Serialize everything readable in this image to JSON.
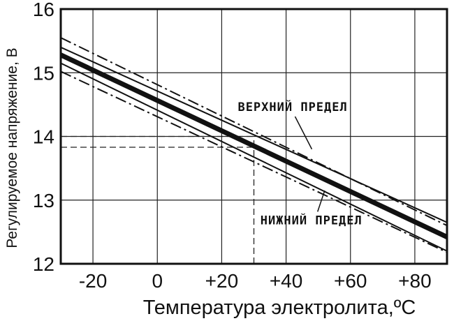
{
  "chart_data": {
    "type": "line",
    "xlabel": "Температура электролита,ºC",
    "ylabel": "Регулируемое напряжение, В",
    "xlim": [
      -30,
      90
    ],
    "ylim": [
      12,
      16
    ],
    "x_ticks": [
      -20,
      0,
      20,
      40,
      60,
      80
    ],
    "x_tick_labels": [
      "-20",
      "0",
      "+20",
      "+40",
      "+60",
      "+80"
    ],
    "y_ticks": [
      12,
      13,
      14,
      15,
      16
    ],
    "y_tick_labels": [
      "12",
      "13",
      "14",
      "15",
      "16"
    ],
    "grid": true,
    "series": [
      {
        "x": [
          -30,
          90
        ],
        "y": [
          15.55,
          12.6
        ],
        "style": "dash-dot"
      },
      {
        "x": [
          -30,
          90
        ],
        "y": [
          15.4,
          12.65
        ],
        "style": "solid-thin"
      },
      {
        "x": [
          -30,
          90
        ],
        "y": [
          15.28,
          12.42
        ],
        "style": "solid-thick"
      },
      {
        "x": [
          -30,
          90
        ],
        "y": [
          15.15,
          12.2
        ],
        "style": "solid-thin"
      },
      {
        "x": [
          -30,
          90
        ],
        "y": [
          15.02,
          12.18
        ],
        "style": "dash-dot"
      }
    ],
    "reference_lines": [
      {
        "orientation": "horizontal",
        "y": 14.0,
        "x_from": -30,
        "x_to": 30
      },
      {
        "orientation": "horizontal",
        "y": 13.83,
        "x_from": -30,
        "x_to": 30
      },
      {
        "orientation": "vertical",
        "x": 30,
        "y_from": 12,
        "y_to": 14.0
      }
    ],
    "annotations": [
      {
        "text": "ВЕРХНИЙ ПРЕДЕЛ",
        "x": 25,
        "y": 14.4,
        "arrow_to": [
          48,
          13.8
        ]
      },
      {
        "text": "НИЖНИЙ ПРЕДЕЛ",
        "x": 32,
        "y": 12.62,
        "arrow_to": [
          52,
          13.15
        ]
      }
    ]
  }
}
